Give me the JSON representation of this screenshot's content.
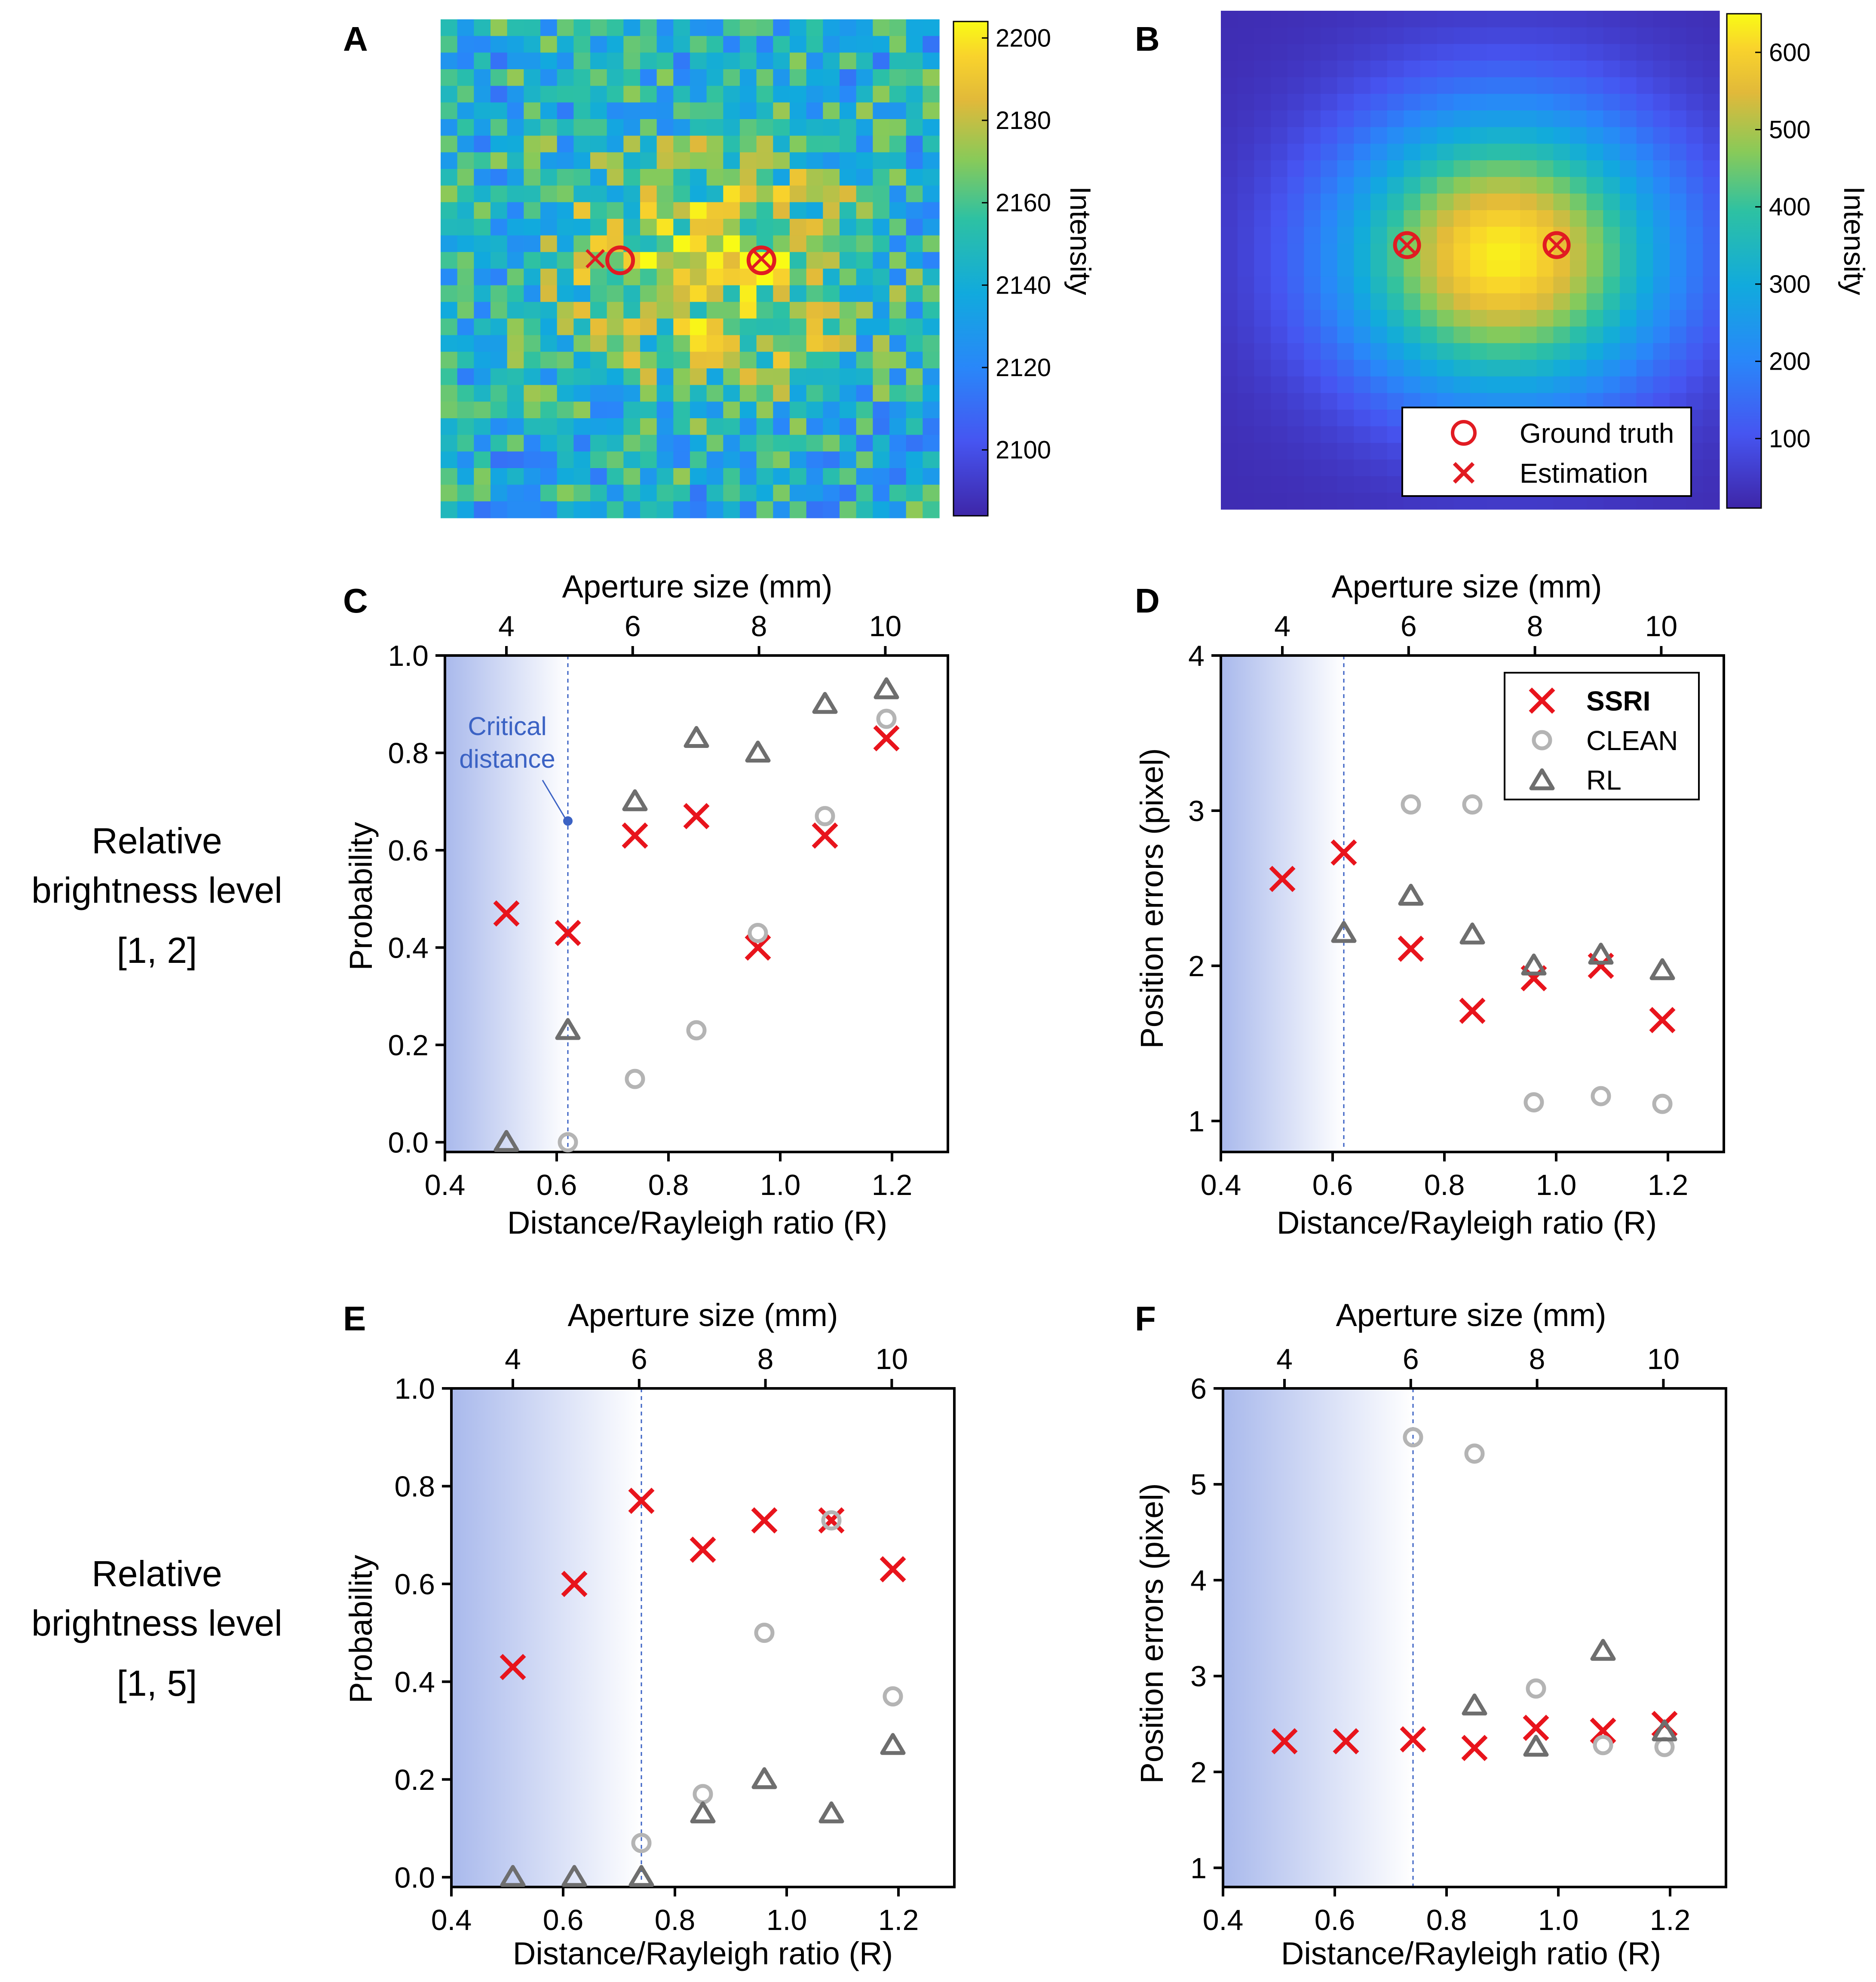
{
  "row_labels": [
    [
      "Relative",
      "brightness level",
      "[1, 2]"
    ],
    [
      "Relative",
      "brightness level",
      "[1, 5]"
    ]
  ],
  "colors": {
    "SSRI": "#e8141c",
    "CLEAN": "#b4b4b4",
    "RL": "#6e6e6e",
    "shade": "#a9b9ec",
    "critical": "#3b62c4",
    "ground_truth": "#e11b22"
  },
  "chart_data": [
    {
      "id": "A",
      "type": "heatmap",
      "panel_label": "A",
      "colorbar": {
        "title": "Intensity",
        "ticks": [
          2100,
          2120,
          2140,
          2160,
          2180,
          2200
        ],
        "range": [
          2084,
          2204
        ]
      },
      "grid_size": [
        30,
        30
      ],
      "markers": {
        "ground_truth": [
          [
            10.8,
            14.5
          ],
          [
            19.3,
            14.5
          ]
        ],
        "estimation": [
          [
            9.3,
            14.4
          ],
          [
            19.3,
            14.4
          ]
        ]
      }
    },
    {
      "id": "B",
      "type": "heatmap",
      "panel_label": "B",
      "colorbar": {
        "title": "Intensity",
        "ticks": [
          100,
          200,
          300,
          400,
          500,
          600
        ],
        "range": [
          10,
          650
        ]
      },
      "grid_size": [
        30,
        30
      ],
      "markers": {
        "ground_truth": [
          [
            11.2,
            14.1
          ],
          [
            20.2,
            14.1
          ]
        ],
        "estimation": [
          [
            11.2,
            14.1
          ],
          [
            20.2,
            14.1
          ]
        ]
      },
      "legend": [
        "Ground truth",
        "Estimation"
      ],
      "legend_position": "bottom-right"
    },
    {
      "id": "C",
      "type": "scatter",
      "panel_label": "C",
      "xlabel": "Distance/Rayleigh ratio (R)",
      "ylabel": "Probability",
      "x2label": "Aperture size (mm)",
      "xlim": [
        0.4,
        1.3
      ],
      "ylim": [
        -0.02,
        1.0
      ],
      "xticks": [
        0.4,
        0.6,
        0.8,
        1.0,
        1.2
      ],
      "yticks": [
        0.0,
        0.2,
        0.4,
        0.6,
        0.8,
        1.0
      ],
      "x2ticks": [
        4,
        6,
        8,
        10
      ],
      "critical_x": 0.62,
      "annotation": {
        "lines": [
          "Critical",
          "distance"
        ],
        "point": [
          0.62,
          0.66
        ]
      },
      "series": [
        {
          "name": "SSRI",
          "marker": "x",
          "x": [
            0.51,
            0.62,
            0.74,
            0.85,
            0.96,
            1.08,
            1.19
          ],
          "y": [
            0.47,
            0.43,
            0.63,
            0.67,
            0.4,
            0.63,
            0.83
          ]
        },
        {
          "name": "CLEAN",
          "marker": "circle",
          "x": [
            0.62,
            0.74,
            0.85,
            0.96,
            1.08,
            1.19
          ],
          "y": [
            0.0,
            0.13,
            0.23,
            0.43,
            0.67,
            0.87
          ]
        },
        {
          "name": "RL",
          "marker": "triangle",
          "x": [
            0.51,
            0.62,
            0.74,
            0.85,
            0.96,
            1.08,
            1.19
          ],
          "y": [
            0.0,
            0.23,
            0.7,
            0.83,
            0.8,
            0.9,
            0.93
          ]
        }
      ]
    },
    {
      "id": "D",
      "type": "scatter",
      "panel_label": "D",
      "xlabel": "Distance/Rayleigh ratio (R)",
      "ylabel": "Position errors (pixel)",
      "x2label": "Aperture size (mm)",
      "xlim": [
        0.4,
        1.3
      ],
      "ylim": [
        0.8,
        4.0
      ],
      "xticks": [
        0.4,
        0.6,
        0.8,
        1.0,
        1.2
      ],
      "yticks": [
        1,
        2,
        3,
        4
      ],
      "x2ticks": [
        4,
        6,
        8,
        10
      ],
      "critical_x": 0.62,
      "legend": [
        "SSRI",
        "CLEAN",
        "RL"
      ],
      "legend_position": "top-right",
      "series": [
        {
          "name": "SSRI",
          "marker": "x",
          "x": [
            0.51,
            0.62,
            0.74,
            0.85,
            0.96,
            1.08,
            1.19
          ],
          "y": [
            2.56,
            2.73,
            2.11,
            1.71,
            1.92,
            2.0,
            1.65
          ]
        },
        {
          "name": "CLEAN",
          "marker": "circle",
          "x": [
            0.74,
            0.85,
            0.96,
            1.08,
            1.19
          ],
          "y": [
            3.04,
            3.04,
            1.12,
            1.16,
            1.11
          ]
        },
        {
          "name": "RL",
          "marker": "triangle",
          "x": [
            0.62,
            0.74,
            0.85,
            0.96,
            1.08,
            1.19
          ],
          "y": [
            2.21,
            2.45,
            2.2,
            2.0,
            2.07,
            1.97
          ]
        }
      ]
    },
    {
      "id": "E",
      "type": "scatter",
      "panel_label": "E",
      "xlabel": "Distance/Rayleigh ratio (R)",
      "ylabel": "Probability",
      "x2label": "Aperture size (mm)",
      "xlim": [
        0.4,
        1.3
      ],
      "ylim": [
        -0.02,
        1.0
      ],
      "xticks": [
        0.4,
        0.6,
        0.8,
        1.0,
        1.2
      ],
      "yticks": [
        0.0,
        0.2,
        0.4,
        0.6,
        0.8,
        1.0
      ],
      "x2ticks": [
        4,
        6,
        8,
        10
      ],
      "critical_x": 0.74,
      "series": [
        {
          "name": "SSRI",
          "marker": "x",
          "x": [
            0.51,
            0.62,
            0.74,
            0.85,
            0.96,
            1.08,
            1.19
          ],
          "y": [
            0.43,
            0.6,
            0.77,
            0.67,
            0.73,
            0.73,
            0.63
          ]
        },
        {
          "name": "CLEAN",
          "marker": "circle",
          "x": [
            0.74,
            0.85,
            0.96,
            1.08,
            1.19
          ],
          "y": [
            0.07,
            0.17,
            0.5,
            0.73,
            0.37
          ]
        },
        {
          "name": "RL",
          "marker": "triangle",
          "x": [
            0.51,
            0.62,
            0.74,
            0.85,
            0.96,
            1.08,
            1.19
          ],
          "y": [
            0.0,
            0.0,
            0.0,
            0.13,
            0.2,
            0.13,
            0.27
          ]
        }
      ]
    },
    {
      "id": "F",
      "type": "scatter",
      "panel_label": "F",
      "xlabel": "Distance/Rayleigh ratio (R)",
      "ylabel": "Position errors (pixel)",
      "x2label": "Aperture size (mm)",
      "xlim": [
        0.4,
        1.3
      ],
      "ylim": [
        0.8,
        6.0
      ],
      "xticks": [
        0.4,
        0.6,
        0.8,
        1.0,
        1.2
      ],
      "yticks": [
        1,
        2,
        3,
        4,
        5,
        6
      ],
      "x2ticks": [
        4,
        6,
        8,
        10
      ],
      "critical_x": 0.74,
      "series": [
        {
          "name": "SSRI",
          "marker": "x",
          "x": [
            0.51,
            0.62,
            0.74,
            0.85,
            0.96,
            1.08,
            1.19
          ],
          "y": [
            2.32,
            2.32,
            2.34,
            2.25,
            2.46,
            2.43,
            2.5
          ]
        },
        {
          "name": "CLEAN",
          "marker": "circle",
          "x": [
            0.74,
            0.85,
            0.96,
            1.08,
            1.19
          ],
          "y": [
            5.49,
            5.32,
            2.87,
            2.28,
            2.26
          ]
        },
        {
          "name": "RL",
          "marker": "triangle",
          "x": [
            0.85,
            0.96,
            1.08,
            1.19
          ],
          "y": [
            2.69,
            2.26,
            3.26,
            2.42
          ]
        }
      ]
    }
  ]
}
